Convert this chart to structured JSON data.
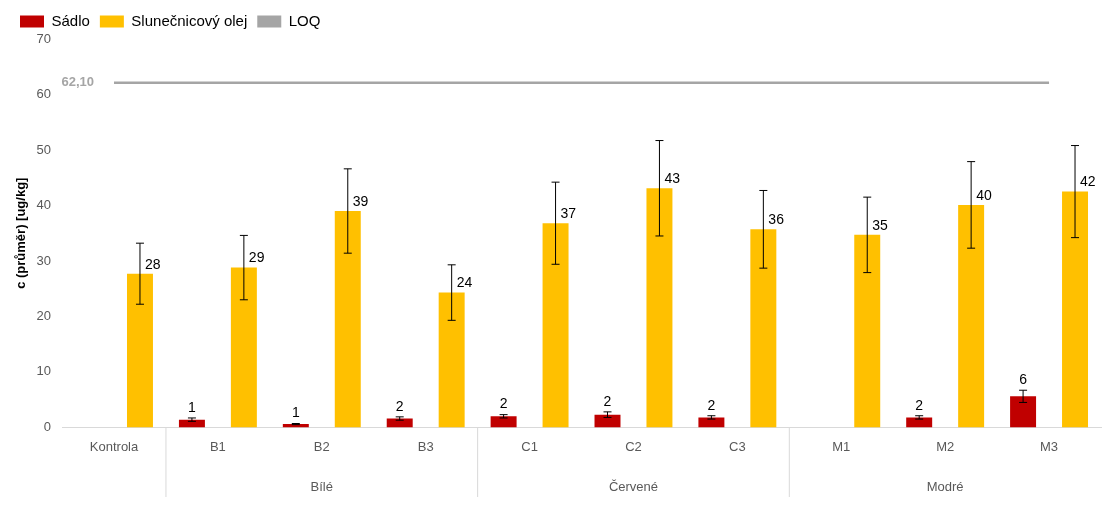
{
  "chart_data": {
    "type": "bar",
    "ylabel": "c (průměr) [ug/kg]",
    "categories": [
      "Kontrola",
      "B1",
      "B2",
      "B3",
      "C1",
      "C2",
      "C3",
      "M1",
      "M2",
      "M3"
    ],
    "series": [
      {
        "name": "Sádlo",
        "color": "#c00000",
        "values": [
          null,
          1.4,
          0.6,
          1.6,
          2.0,
          2.3,
          1.8,
          null,
          1.8,
          5.6
        ],
        "errors": [
          null,
          0.3,
          0.1,
          0.3,
          0.3,
          0.5,
          0.3,
          null,
          0.3,
          1.1
        ],
        "value_labels": [
          null,
          "1",
          "1",
          "2",
          "2",
          "2",
          "2",
          null,
          "2",
          "6"
        ]
      },
      {
        "name": "Slunečnicový olej",
        "color": "#ffc000",
        "values": [
          27.7,
          28.8,
          39.0,
          24.3,
          36.8,
          43.1,
          35.7,
          34.7,
          40.1,
          42.5
        ],
        "errors": [
          5.5,
          5.8,
          7.6,
          5.0,
          7.4,
          8.6,
          7.0,
          6.8,
          7.8,
          8.3
        ],
        "value_labels": [
          "28",
          "29",
          "39",
          "24",
          "37",
          "43",
          "36",
          "35",
          "40",
          "42"
        ]
      },
      {
        "name": "LOQ",
        "type": "line",
        "color": "#a5a5a5",
        "marker": "none",
        "values": [
          62.1,
          62.1,
          62.1,
          62.1,
          62.1,
          62.1,
          62.1,
          62.1,
          62.1,
          62.1
        ]
      }
    ],
    "ylim": [
      0,
      70
    ],
    "yticks": [
      0,
      10,
      20,
      30,
      40,
      50,
      60,
      70
    ],
    "grid": false,
    "legend": "top left",
    "annotations": [
      {
        "text": "62,10",
        "x": "Kontrola",
        "y": 62.1
      },
      "Bílé",
      "Červené",
      "Modré"
    ]
  }
}
